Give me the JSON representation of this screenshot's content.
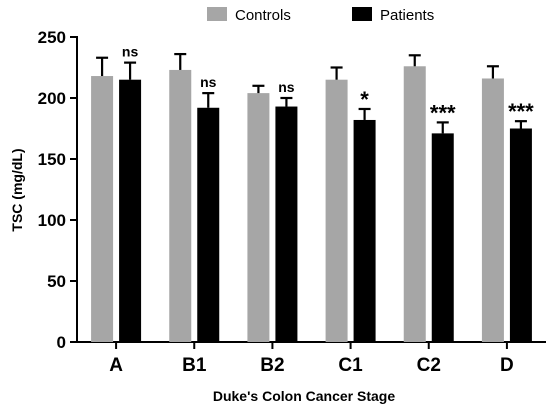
{
  "chart_data": {
    "type": "bar",
    "title": "",
    "xlabel": "Duke's Colon Cancer Stage",
    "ylabel": "TSC (mg/dL)",
    "ylim": [
      0,
      250
    ],
    "yticks": [
      0,
      50,
      100,
      150,
      200,
      250
    ],
    "categories": [
      "A",
      "B1",
      "B2",
      "C1",
      "C2",
      "D"
    ],
    "series": [
      {
        "name": "Controls",
        "color": "#a6a6a6",
        "values": [
          218,
          223,
          204,
          215,
          226,
          216
        ],
        "errors": [
          15,
          13,
          6,
          10,
          9,
          10
        ]
      },
      {
        "name": "Patients",
        "color": "#000000",
        "values": [
          215,
          192,
          193,
          182,
          171,
          175
        ],
        "errors": [
          14,
          12,
          7,
          9,
          9,
          6
        ]
      }
    ],
    "significance": [
      "ns",
      "ns",
      "ns",
      "*",
      "***",
      "***"
    ],
    "legend_position": "top",
    "grid": false
  }
}
